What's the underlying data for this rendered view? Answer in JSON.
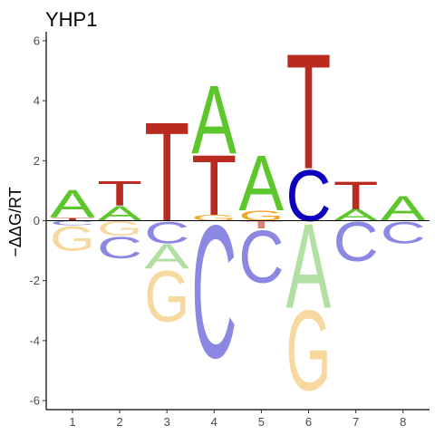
{
  "chart_data": {
    "type": "sequence-logo",
    "title": "YHP1",
    "ylabel": "−ΔΔG/RT",
    "xlabel": "",
    "ylim": [
      -6.3,
      6.3
    ],
    "yticks": [
      -6,
      -4,
      -2,
      0,
      2,
      4,
      6
    ],
    "ytick_labels": [
      "-6",
      "-4",
      "-2",
      "0",
      "2",
      "4",
      "6"
    ],
    "xtick_labels": [
      "1",
      "2",
      "3",
      "4",
      "5",
      "6",
      "7",
      "8"
    ],
    "grid": false,
    "colors": {
      "A": {
        "positive": "#5ec62d",
        "negative": "#b2e0a2"
      },
      "C": {
        "positive": "#0d00bf",
        "negative": "#8b87e2"
      },
      "G": {
        "positive": "#f5a623",
        "negative": "#f7d9a0"
      },
      "T": {
        "positive": "#bb2a20",
        "negative": "#e07d75"
      }
    },
    "positions": [
      {
        "position": "1",
        "positive": [
          {
            "letter": "T",
            "value": 0.1
          },
          {
            "letter": "A",
            "value": 0.95
          }
        ],
        "negative": [
          {
            "letter": "C",
            "value": 0.15
          },
          {
            "letter": "G",
            "value": 0.85
          }
        ]
      },
      {
        "position": "2",
        "positive": [
          {
            "letter": "A",
            "value": 0.5
          },
          {
            "letter": "T",
            "value": 0.85
          }
        ],
        "negative": [
          {
            "letter": "G",
            "value": 0.5
          },
          {
            "letter": "C",
            "value": 0.75
          }
        ]
      },
      {
        "position": "3",
        "positive": [
          {
            "letter": "T",
            "value": 3.4
          }
        ],
        "negative": [
          {
            "letter": "C",
            "value": 0.75
          },
          {
            "letter": "A",
            "value": 0.85
          },
          {
            "letter": "G",
            "value": 1.75
          }
        ]
      },
      {
        "position": "4",
        "positive": [
          {
            "letter": "G",
            "value": 0.2
          },
          {
            "letter": "T",
            "value": 2.05
          },
          {
            "letter": "A",
            "value": 2.35
          }
        ],
        "negative": [
          {
            "letter": "C",
            "value": 4.55
          }
        ]
      },
      {
        "position": "5",
        "positive": [
          {
            "letter": "G",
            "value": 0.35
          },
          {
            "letter": "A",
            "value": 1.9
          }
        ],
        "negative": [
          {
            "letter": "T",
            "value": 0.25
          },
          {
            "letter": "C",
            "value": 1.8
          }
        ]
      },
      {
        "position": "6",
        "positive": [
          {
            "letter": "C",
            "value": 1.75
          },
          {
            "letter": "T",
            "value": 3.95
          }
        ],
        "negative": [
          {
            "letter": "A",
            "value": 2.9
          },
          {
            "letter": "G",
            "value": 2.75
          }
        ]
      },
      {
        "position": "7",
        "positive": [
          {
            "letter": "A",
            "value": 0.4
          },
          {
            "letter": "T",
            "value": 0.95
          }
        ],
        "negative": [
          {
            "letter": "C",
            "value": 1.35
          }
        ]
      },
      {
        "position": "8",
        "positive": [
          {
            "letter": "A",
            "value": 0.85
          }
        ],
        "negative": [
          {
            "letter": "C",
            "value": 0.75
          }
        ]
      }
    ]
  }
}
